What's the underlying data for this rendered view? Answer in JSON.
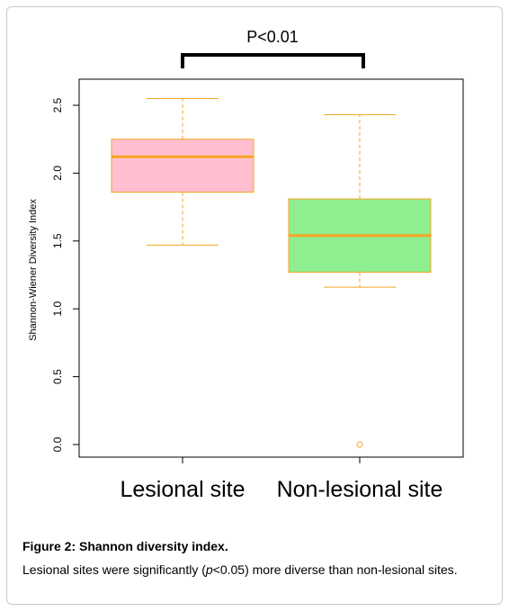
{
  "chart_data": {
    "type": "box",
    "categories": [
      "Lesional site",
      "Non-lesional site"
    ],
    "ylabel": "Shannon-Wiener Diversity Index",
    "xlabel": "",
    "ylim": [
      -0.05,
      2.65
    ],
    "yticks": [
      "0.0",
      "0.5",
      "1.0",
      "1.5",
      "2.0",
      "2.5"
    ],
    "annotation": "P<0.01",
    "boxes": [
      {
        "name": "Lesional site",
        "min": 1.47,
        "q1": 1.86,
        "median": 2.12,
        "q3": 2.25,
        "max": 2.55,
        "outliers": [],
        "fill": "#ffbfd0"
      },
      {
        "name": "Non-lesional site",
        "min": 1.16,
        "q1": 1.27,
        "median": 1.54,
        "q3": 1.81,
        "max": 2.43,
        "outliers": [
          0.0
        ],
        "fill": "#8fee8f"
      }
    ],
    "stroke_color": "#f5a623"
  },
  "caption": {
    "title": "Figure 2: Shannon diversity index.",
    "body_pre": "Lesional sites were significantly (",
    "body_italic": "p",
    "body_post": "<0.05) more diverse than non-lesional sites."
  }
}
